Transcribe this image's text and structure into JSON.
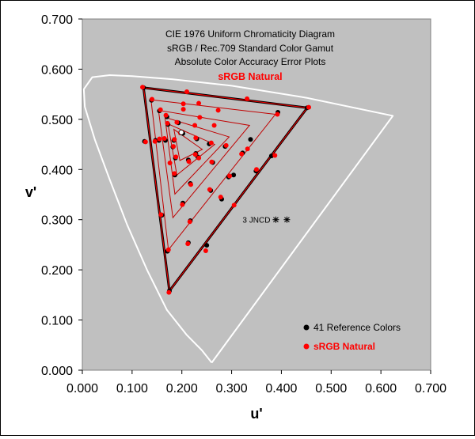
{
  "chart_data": {
    "type": "scatter",
    "title_lines": [
      "CIE 1976 Uniform Chromaticity Diagram",
      "sRGB / Rec.709 Standard Color Gamut",
      "Absolute Color Accuracy Error Plots"
    ],
    "subtitle": "sRGB Natural",
    "xlabel": "u'",
    "ylabel": "v'",
    "xlim": [
      0,
      0.7
    ],
    "ylim": [
      0,
      0.7
    ],
    "x_ticks": [
      "0.000",
      "0.100",
      "0.200",
      "0.300",
      "0.400",
      "0.500",
      "0.600",
      "0.700"
    ],
    "y_ticks": [
      "0.000",
      "0.100",
      "0.200",
      "0.300",
      "0.400",
      "0.500",
      "0.600",
      "0.700"
    ],
    "grid": false,
    "legend_position": "bottom-right",
    "annotation": {
      "label": "3 JNCD",
      "u": 0.4,
      "v": 0.3
    },
    "locus": [
      [
        0.26,
        0.015
      ],
      [
        0.24,
        0.04
      ],
      [
        0.21,
        0.07
      ],
      [
        0.17,
        0.12
      ],
      [
        0.13,
        0.2
      ],
      [
        0.09,
        0.29
      ],
      [
        0.055,
        0.38
      ],
      [
        0.025,
        0.46
      ],
      [
        0.005,
        0.525
      ],
      [
        0.003,
        0.56
      ],
      [
        0.02,
        0.584
      ],
      [
        0.055,
        0.588
      ],
      [
        0.1,
        0.586
      ],
      [
        0.18,
        0.58
      ],
      [
        0.3,
        0.567
      ],
      [
        0.45,
        0.543
      ],
      [
        0.624,
        0.507
      ],
      [
        0.26,
        0.015
      ]
    ],
    "series": [
      {
        "name": "41 Reference Colors",
        "color": "#000000",
        "points": [
          [
            0.175,
            0.158
          ],
          [
            0.202,
            0.333
          ],
          [
            0.217,
            0.298
          ],
          [
            0.217,
            0.372
          ],
          [
            0.228,
            0.432
          ],
          [
            0.213,
            0.254
          ],
          [
            0.25,
            0.249
          ],
          [
            0.28,
            0.341
          ],
          [
            0.304,
            0.389
          ],
          [
            0.338,
            0.46
          ],
          [
            0.393,
            0.514
          ],
          [
            0.452,
            0.523
          ],
          [
            0.123,
            0.563
          ],
          [
            0.139,
            0.538
          ],
          [
            0.155,
            0.517
          ],
          [
            0.17,
            0.505
          ],
          [
            0.172,
            0.49
          ],
          [
            0.193,
            0.493
          ],
          [
            0.201,
            0.474
          ],
          [
            0.202,
            0.472
          ],
          [
            0.23,
            0.461
          ],
          [
            0.255,
            0.451
          ],
          [
            0.287,
            0.446
          ],
          [
            0.322,
            0.433
          ],
          [
            0.38,
            0.427
          ],
          [
            0.349,
            0.397
          ],
          [
            0.262,
            0.414
          ],
          [
            0.294,
            0.385
          ],
          [
            0.258,
            0.358
          ],
          [
            0.213,
            0.419
          ],
          [
            0.232,
            0.425
          ],
          [
            0.186,
            0.389
          ],
          [
            0.187,
            0.423
          ],
          [
            0.184,
            0.458
          ],
          [
            0.182,
            0.445
          ],
          [
            0.167,
            0.458
          ],
          [
            0.154,
            0.458
          ],
          [
            0.147,
            0.458
          ],
          [
            0.171,
            0.237
          ],
          [
            0.16,
            0.309
          ],
          [
            0.125,
            0.456
          ]
        ]
      },
      {
        "name": "sRGB Natural",
        "color": "#ff0000",
        "points": [
          [
            0.174,
            0.155
          ],
          [
            0.201,
            0.33
          ],
          [
            0.216,
            0.296
          ],
          [
            0.218,
            0.37
          ],
          [
            0.227,
            0.43
          ],
          [
            0.212,
            0.252
          ],
          [
            0.248,
            0.238
          ],
          [
            0.278,
            0.345
          ],
          [
            0.305,
            0.329
          ],
          [
            0.332,
            0.441
          ],
          [
            0.392,
            0.51
          ],
          [
            0.455,
            0.524
          ],
          [
            0.121,
            0.564
          ],
          [
            0.14,
            0.54
          ],
          [
            0.157,
            0.519
          ],
          [
            0.168,
            0.508
          ],
          [
            0.171,
            0.492
          ],
          [
            0.19,
            0.494
          ],
          [
            0.2,
            0.475
          ],
          [
            0.197,
            0.473
          ],
          [
            0.228,
            0.463
          ],
          [
            0.259,
            0.453
          ],
          [
            0.289,
            0.448
          ],
          [
            0.32,
            0.431
          ],
          [
            0.387,
            0.428
          ],
          [
            0.35,
            0.4
          ],
          [
            0.26,
            0.415
          ],
          [
            0.296,
            0.387
          ],
          [
            0.256,
            0.36
          ],
          [
            0.214,
            0.416
          ],
          [
            0.234,
            0.423
          ],
          [
            0.185,
            0.392
          ],
          [
            0.188,
            0.425
          ],
          [
            0.185,
            0.46
          ],
          [
            0.183,
            0.446
          ],
          [
            0.165,
            0.462
          ],
          [
            0.155,
            0.461
          ],
          [
            0.146,
            0.456
          ],
          [
            0.173,
            0.24
          ],
          [
            0.158,
            0.31
          ],
          [
            0.127,
            0.455
          ],
          [
            0.21,
            0.555
          ],
          [
            0.331,
            0.541
          ],
          [
            0.273,
            0.518
          ],
          [
            0.234,
            0.532
          ],
          [
            0.203,
            0.531
          ],
          [
            0.236,
            0.504
          ],
          [
            0.265,
            0.488
          ],
          [
            0.226,
            0.488
          ],
          [
            0.176,
            0.413
          ],
          [
            0.203,
            0.52
          ]
        ]
      }
    ],
    "triangles": [
      {
        "vertices": [
          [
            0.175,
            0.158
          ],
          [
            0.452,
            0.523
          ],
          [
            0.123,
            0.563
          ]
        ],
        "color": "#000000",
        "width": 3
      },
      {
        "vertices": [
          [
            0.175,
            0.158
          ],
          [
            0.452,
            0.523
          ],
          [
            0.123,
            0.563
          ]
        ],
        "color": "#ff0000",
        "width": 1
      },
      {
        "vertices": [
          [
            0.173,
            0.24
          ],
          [
            0.388,
            0.51
          ],
          [
            0.138,
            0.539
          ]
        ],
        "color": "#c00000",
        "width": 1
      },
      {
        "vertices": [
          [
            0.182,
            0.304
          ],
          [
            0.336,
            0.488
          ],
          [
            0.153,
            0.518
          ]
        ],
        "color": "#c00000",
        "width": 1
      },
      {
        "vertices": [
          [
            0.186,
            0.351
          ],
          [
            0.295,
            0.465
          ],
          [
            0.166,
            0.504
          ]
        ],
        "color": "#c00000",
        "width": 1
      },
      {
        "vertices": [
          [
            0.19,
            0.389
          ],
          [
            0.266,
            0.45
          ],
          [
            0.172,
            0.491
          ]
        ],
        "color": "#c00000",
        "width": 1
      },
      {
        "vertices": [
          [
            0.196,
            0.418
          ],
          [
            0.241,
            0.44
          ],
          [
            0.184,
            0.48
          ]
        ],
        "color": "#c00000",
        "width": 1
      }
    ],
    "white_point": [
      0.199,
      0.474
    ],
    "legend": [
      {
        "label": "41 Reference Colors",
        "color": "#000000"
      },
      {
        "label": "sRGB Natural",
        "color": "#ff0000"
      }
    ]
  }
}
